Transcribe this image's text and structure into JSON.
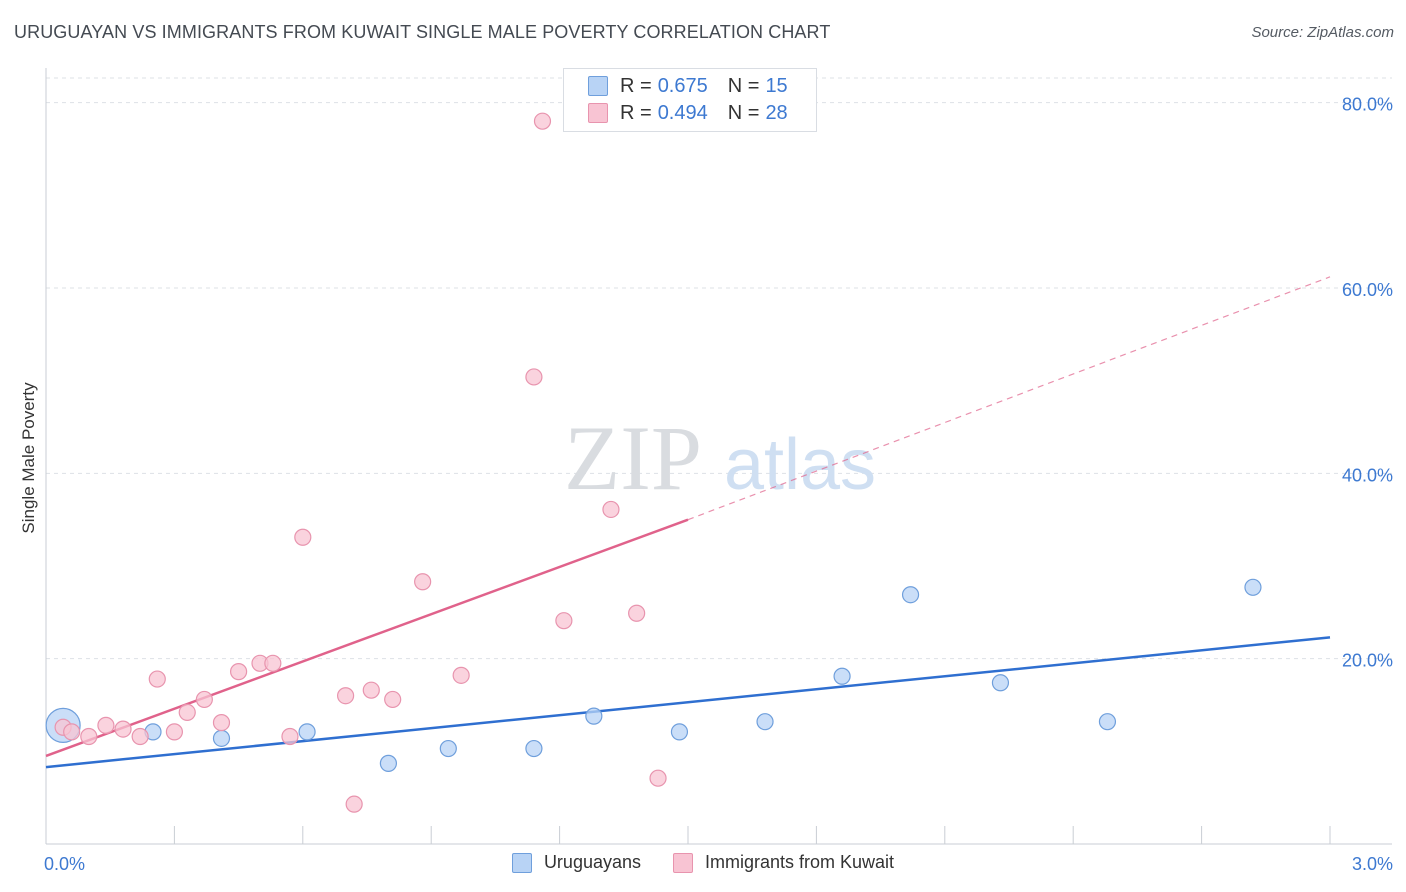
{
  "header": {
    "title": "URUGUAYAN VS IMMIGRANTS FROM KUWAIT SINGLE MALE POVERTY CORRELATION CHART",
    "source": "Source: ZipAtlas.com"
  },
  "legend_box": {
    "rows": [
      {
        "r_label": "R =",
        "r_value": "0.675",
        "n_label": "N =",
        "n_value": "15"
      },
      {
        "r_label": "R =",
        "r_value": "0.494",
        "n_label": "N =",
        "n_value": "28"
      }
    ]
  },
  "watermark": {
    "zip": "ZIP",
    "atlas": "atlas"
  },
  "colors": {
    "blue_fill": "#b8d3f5",
    "blue_stroke": "#6f9fdc",
    "blue_line": "#2f6fd0",
    "pink_fill": "#f8c4d3",
    "pink_stroke": "#e894ae",
    "pink_line": "#e0628b",
    "tick_label": "#3d79d1",
    "grid": "#dde1e6"
  },
  "chart_data": {
    "type": "scatter",
    "title": "URUGUAYAN VS IMMIGRANTS FROM KUWAIT SINGLE MALE POVERTY CORRELATION CHART",
    "xlabel": "",
    "ylabel": "Single Male Poverty",
    "xlim": [
      0.0,
      3.0
    ],
    "ylim": [
      0,
      82
    ],
    "x_tick_labels": [
      "0.0%",
      "3.0%"
    ],
    "y_ticks": [
      20,
      40,
      60,
      80
    ],
    "y_tick_labels": [
      "20.0%",
      "40.0%",
      "60.0%",
      "80.0%"
    ],
    "grid": true,
    "legend_position": "bottom-center",
    "series": [
      {
        "name": "Uruguayans",
        "color": "#b8d3f5",
        "points": [
          {
            "x": 0.04,
            "y": 12.8,
            "size": "large"
          },
          {
            "x": 0.25,
            "y": 12.1
          },
          {
            "x": 0.41,
            "y": 11.4
          },
          {
            "x": 0.61,
            "y": 12.1
          },
          {
            "x": 0.8,
            "y": 8.7
          },
          {
            "x": 0.94,
            "y": 10.3
          },
          {
            "x": 1.14,
            "y": 10.3
          },
          {
            "x": 1.28,
            "y": 13.8
          },
          {
            "x": 1.48,
            "y": 12.1
          },
          {
            "x": 1.68,
            "y": 13.2
          },
          {
            "x": 1.86,
            "y": 18.1
          },
          {
            "x": 2.02,
            "y": 26.9
          },
          {
            "x": 2.23,
            "y": 17.4
          },
          {
            "x": 2.48,
            "y": 13.2
          },
          {
            "x": 2.82,
            "y": 27.7
          }
        ],
        "trend": {
          "x0": 0.0,
          "y0": 8.3,
          "x1": 3.0,
          "y1": 22.3,
          "style": "solid"
        }
      },
      {
        "name": "Immigrants from Kuwait",
        "color": "#f8c4d3",
        "points": [
          {
            "x": 0.04,
            "y": 12.6
          },
          {
            "x": 0.06,
            "y": 12.1
          },
          {
            "x": 0.1,
            "y": 11.6
          },
          {
            "x": 0.14,
            "y": 12.8
          },
          {
            "x": 0.18,
            "y": 12.4
          },
          {
            "x": 0.22,
            "y": 11.6
          },
          {
            "x": 0.26,
            "y": 17.8
          },
          {
            "x": 0.3,
            "y": 12.1
          },
          {
            "x": 0.33,
            "y": 14.2
          },
          {
            "x": 0.37,
            "y": 15.6
          },
          {
            "x": 0.41,
            "y": 13.1
          },
          {
            "x": 0.45,
            "y": 18.6
          },
          {
            "x": 0.5,
            "y": 19.5
          },
          {
            "x": 0.53,
            "y": 19.5
          },
          {
            "x": 0.57,
            "y": 11.6
          },
          {
            "x": 0.6,
            "y": 33.1
          },
          {
            "x": 0.7,
            "y": 16.0
          },
          {
            "x": 0.72,
            "y": 4.3
          },
          {
            "x": 0.76,
            "y": 16.6
          },
          {
            "x": 0.81,
            "y": 15.6
          },
          {
            "x": 0.88,
            "y": 28.3
          },
          {
            "x": 0.97,
            "y": 18.2
          },
          {
            "x": 1.14,
            "y": 50.4
          },
          {
            "x": 1.16,
            "y": 78.0
          },
          {
            "x": 1.21,
            "y": 24.1
          },
          {
            "x": 1.32,
            "y": 36.1
          },
          {
            "x": 1.38,
            "y": 24.9
          },
          {
            "x": 1.43,
            "y": 7.1
          }
        ],
        "trend": {
          "x0": 0.0,
          "y0": 9.5,
          "x1": 1.5,
          "y1": 35.0,
          "x_ext": 3.0,
          "y_ext": 61.2,
          "style": "solid-then-dashed"
        }
      }
    ]
  }
}
